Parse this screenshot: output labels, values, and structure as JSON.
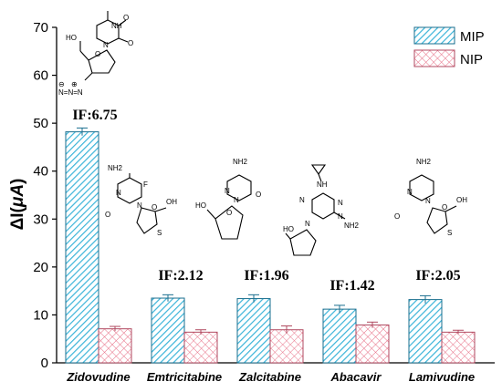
{
  "chart_data": {
    "type": "bar",
    "categories": [
      "Zidovudine",
      "Emtricitabine",
      "Zalcitabine",
      "Abacavir",
      "Lamivudine"
    ],
    "series": [
      {
        "name": "MIP",
        "values": [
          48.2,
          13.5,
          13.4,
          11.2,
          13.2
        ],
        "errors": [
          0.8,
          0.7,
          0.8,
          0.8,
          0.8
        ],
        "color": "#3bb4d9",
        "pattern": "diagonal-hatch"
      },
      {
        "name": "NIP",
        "values": [
          7.1,
          6.4,
          6.9,
          7.9,
          6.4
        ],
        "errors": [
          0.5,
          0.5,
          0.8,
          0.6,
          0.4
        ],
        "color": "#e8748a",
        "pattern": "crosshatch"
      }
    ],
    "annotations": [
      "IF:6.75",
      "IF:2.12",
      "IF:1.96",
      "IF:1.42",
      "IF:2.05"
    ],
    "ylabel": "ΔI(μA)",
    "ylabel_parts": {
      "delta_i": "ΔI(",
      "mu": "μ",
      "unit": "A",
      "close": ")"
    },
    "xlabel": "",
    "ylim": [
      0,
      70
    ],
    "yticks": [
      0,
      10,
      20,
      30,
      40,
      50,
      60,
      70
    ],
    "legend_position": "top-right",
    "grid": false
  },
  "molecule_labels": {
    "zidovudine": {
      "ho": "HO",
      "o_top": "O",
      "o_left": "O",
      "n": "N",
      "nh": "NH",
      "o_ring": "O",
      "azide": "N=N=N",
      "minus": "⊖",
      "plus": "⊕"
    },
    "emtricitabine": {
      "nh2": "NH2",
      "f": "F",
      "n1": "N",
      "n2": "N",
      "o": "O",
      "o_ring": "O",
      "s": "S",
      "oh": "OH"
    },
    "zalcitabine": {
      "nh2": "NH2",
      "n1": "N",
      "n2": "N",
      "o": "O",
      "o_ring": "O",
      "ho": "HO"
    },
    "abacavir": {
      "nh": "NH",
      "n1": "N",
      "n2": "N",
      "n3": "N",
      "n4": "N",
      "nh2": "NH2",
      "ho": "HO"
    },
    "lamivudine": {
      "nh2": "NH2",
      "n1": "N",
      "n2": "N",
      "o": "O",
      "o_ring": "O",
      "s": "S",
      "oh": "OH"
    }
  }
}
